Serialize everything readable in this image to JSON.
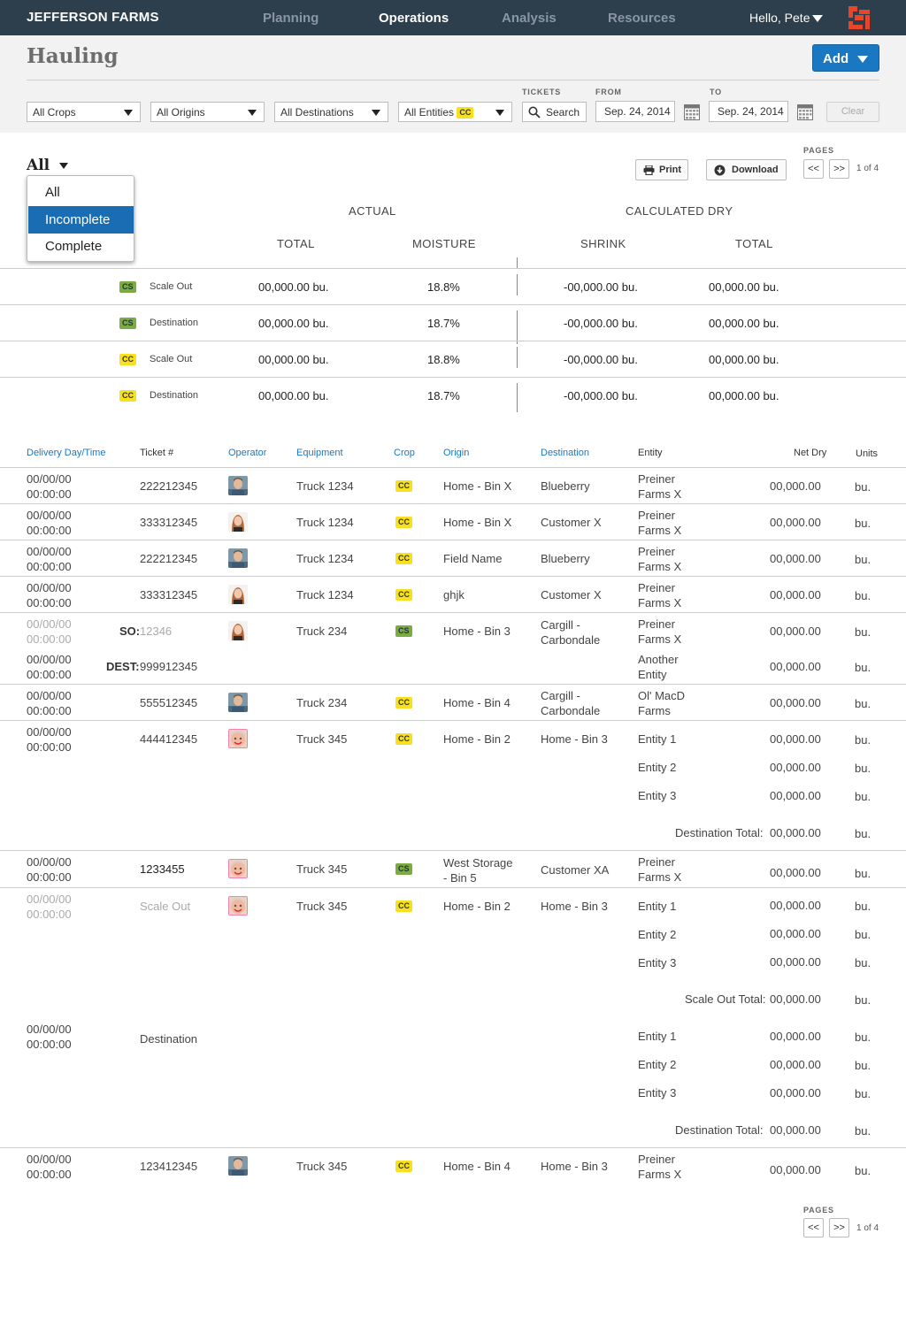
{
  "nav": {
    "brand": "JEFFERSON FARMS",
    "items": [
      "Planning",
      "Operations",
      "Analysis",
      "Resources"
    ],
    "active": "Operations",
    "greeting": "Hello, Pete"
  },
  "header": {
    "title": "Hauling",
    "add_label": "Add"
  },
  "filters": {
    "crops": "All Crops",
    "origins": "All Origins",
    "destinations": "All Destinations",
    "entities": "All Entities",
    "entities_badge": "CC",
    "tickets_label": "TICKETS",
    "search_label": "Search",
    "from_label": "FROM",
    "from_date": "Sep. 24, 2014",
    "to_label": "TO",
    "to_date": "Sep. 24, 2014",
    "clear_label": "Clear"
  },
  "status_filter": {
    "selected": "All",
    "options": [
      "All",
      "Incomplete",
      "Complete"
    ]
  },
  "actions": {
    "print": "Print",
    "download": "Download"
  },
  "pagination": {
    "label": "PAGES",
    "prev": "<<",
    "next": ">>",
    "of": "1 of 4"
  },
  "summary": {
    "group_actual": "ACTUAL",
    "group_dry": "CALCULATED DRY",
    "col_total": "TOTAL",
    "col_moisture": "MOISTURE",
    "col_shrink": "SHRINK",
    "col_dry_total": "TOTAL",
    "rows": [
      {
        "crop": "CS",
        "type": "Scale Out",
        "total": "00,000.00 bu.",
        "moisture": "18.8%",
        "shrink": "-00,000.00 bu.",
        "dry_total": "00,000.00 bu."
      },
      {
        "crop": "CS",
        "type": "Destination",
        "total": "00,000.00 bu.",
        "moisture": "18.7%",
        "shrink": "-00,000.00 bu.",
        "dry_total": "00,000.00 bu."
      },
      {
        "crop": "CC",
        "type": "Scale Out",
        "total": "00,000.00 bu.",
        "moisture": "18.8%",
        "shrink": "-00,000.00 bu.",
        "dry_total": "00,000.00 bu."
      },
      {
        "crop": "CC",
        "type": "Destination",
        "total": "00,000.00 bu.",
        "moisture": "18.7%",
        "shrink": "-00,000.00 bu.",
        "dry_total": "00,000.00 bu."
      }
    ]
  },
  "table": {
    "headers": {
      "delivery": "Delivery Day/Time",
      "ticket": "Ticket #",
      "operator": "Operator",
      "equipment": "Equipment",
      "crop": "Crop",
      "origin": "Origin",
      "destination": "Destination",
      "entity": "Entity",
      "net_dry": "Net Dry",
      "units": "Units"
    },
    "date": "00/00/00",
    "time": "00:00:00",
    "unit": "bu.",
    "amount": "00,000.00",
    "so_label": "SO:",
    "dest_label": "DEST:",
    "dest_total_label": "Destination Total:",
    "scale_out_total_label": "Scale Out Total:",
    "rows": {
      "r1": {
        "ticket": "222212345",
        "equipment": "Truck 1234",
        "crop": "CC",
        "origin": "Home - Bin X",
        "destination": "Blueberry",
        "entity": [
          "Preiner",
          "Farms X"
        ]
      },
      "r2": {
        "ticket": "333312345",
        "equipment": "Truck 1234",
        "crop": "CC",
        "origin": "Home - Bin X",
        "destination": "Customer X",
        "entity": [
          "Preiner",
          "Farms X"
        ]
      },
      "r3": {
        "ticket": "222212345",
        "equipment": "Truck 1234",
        "crop": "CC",
        "origin": "Field Name",
        "destination": "Blueberry",
        "entity": [
          "Preiner",
          "Farms X"
        ]
      },
      "r4": {
        "ticket": "333312345",
        "equipment": "Truck 1234",
        "crop": "CC",
        "origin": "ghjk",
        "destination": "Customer X",
        "entity": [
          "Preiner",
          "Farms X"
        ]
      },
      "r5": {
        "ticket_so": "12346",
        "ticket_dest": "999912345",
        "equipment": "Truck 234",
        "crop": "CS",
        "origin": "Home - Bin 3",
        "destination": [
          "Cargill -",
          "Carbondale"
        ],
        "entity": [
          "Preiner",
          "Farms X"
        ],
        "entity2": [
          "Another",
          "Entity"
        ]
      },
      "r6": {
        "ticket": "555512345",
        "equipment": "Truck 234",
        "crop": "CC",
        "origin": "Home - Bin 4",
        "destination": [
          "Cargill -",
          "Carbondale"
        ],
        "entity": [
          "Ol' MacD",
          "Farms"
        ]
      },
      "r7": {
        "ticket": "444412345",
        "equipment": "Truck 345",
        "crop": "CC",
        "origin": "Home - Bin 2",
        "destination": "Home - Bin 3",
        "entities": [
          "Entity 1",
          "Entity 2",
          "Entity 3"
        ]
      },
      "r8": {
        "ticket": "1233455",
        "equipment": "Truck 345",
        "crop": "CS",
        "origin": [
          "West Storage",
          "- Bin 5"
        ],
        "destination": "Customer XA",
        "entity": [
          "Preiner",
          "Farms X"
        ]
      },
      "r9": {
        "ticket": "Scale Out",
        "ticket2": "Destination",
        "equipment": "Truck 345",
        "crop": "CC",
        "origin": "Home - Bin 2",
        "destination": "Home - Bin 3",
        "entities": [
          "Entity 1",
          "Entity 2",
          "Entity 3"
        ]
      },
      "r10": {
        "ticket": "123412345",
        "equipment": "Truck 345",
        "crop": "CC",
        "origin": "Home - Bin 4",
        "destination": "Home - Bin 3",
        "entity": [
          "Preiner",
          "Farms X"
        ]
      }
    }
  },
  "colors": {
    "nav_bg": "#2d3e4c",
    "accent": "#1a78c2",
    "badge_cc": "#f7e11f",
    "badge_cs": "#7cab44",
    "logo": "#e8452a"
  }
}
